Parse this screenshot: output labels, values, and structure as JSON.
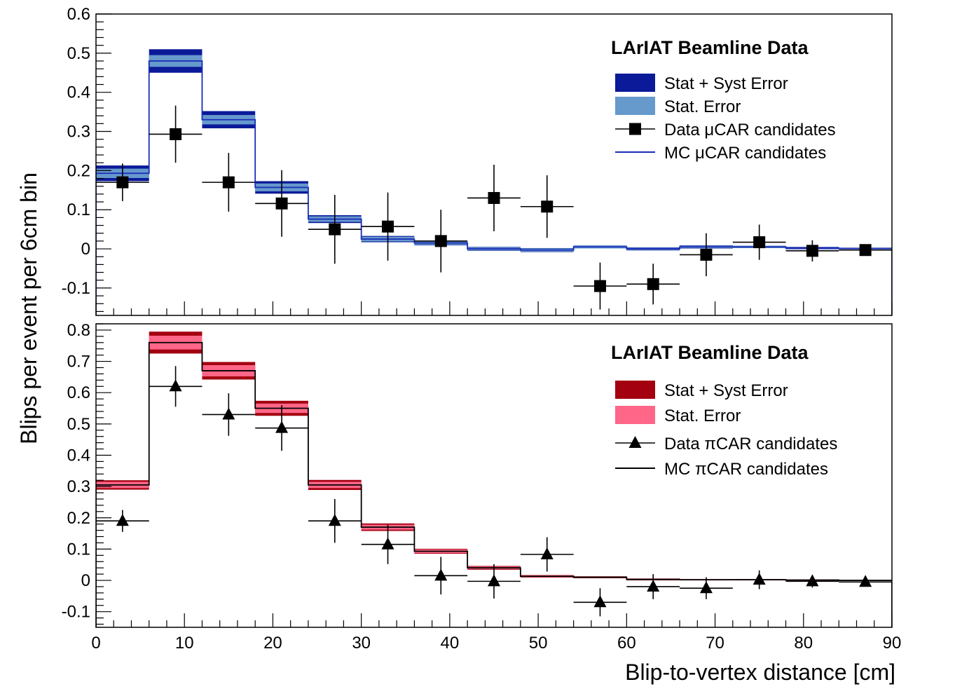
{
  "x_axis": {
    "label": "Blip-to-vertex distance [cm]",
    "lim": [
      0,
      90
    ],
    "ticks": [
      0,
      10,
      20,
      30,
      40,
      50,
      60,
      70,
      80,
      90
    ]
  },
  "y_axis_label": "Blips per event per 6cm bin",
  "chart_data": [
    {
      "type": "step-histogram-with-points",
      "panel": "top",
      "title": "LArIAT Beamline Data",
      "ylim": [
        -0.17,
        0.6
      ],
      "yticks": [
        -0.1,
        0,
        0.1,
        0.2,
        0.3,
        0.4,
        0.5,
        0.6
      ],
      "ytick_labels": [
        "-0.1",
        "0",
        "0.1",
        "0.2",
        "0.3",
        "0.4",
        "0.5",
        "0.6"
      ],
      "bin_edges": [
        0,
        6,
        12,
        18,
        24,
        30,
        36,
        42,
        48,
        54,
        60,
        66,
        72,
        78,
        84,
        90
      ],
      "mc": {
        "name": "MC μCAR candidates",
        "color": "#1a2bb8",
        "values": [
          0.193,
          0.48,
          0.33,
          0.157,
          0.076,
          0.025,
          0.015,
          0.0,
          -0.003,
          0.005,
          0.0,
          0.005,
          0.005,
          0.002,
          0.001
        ],
        "stat_err": [
          0.012,
          0.015,
          0.012,
          0.01,
          0.007,
          0.006,
          0.005,
          0.004,
          0.004,
          0.004,
          0.003,
          0.003,
          0.003,
          0.002,
          0.002
        ],
        "total_err": [
          0.02,
          0.03,
          0.022,
          0.016,
          0.01,
          0.008,
          0.006,
          0.005,
          0.005,
          0.004,
          0.004,
          0.004,
          0.003,
          0.003,
          0.002
        ],
        "stat_color": "#6699cc",
        "total_color": "#0b1a99"
      },
      "data": {
        "name": "Data μCAR candidates",
        "marker": "square",
        "x": [
          3,
          9,
          15,
          21,
          27,
          33,
          39,
          45,
          51,
          57,
          63,
          69,
          75,
          81,
          87
        ],
        "y": [
          0.17,
          0.293,
          0.17,
          0.116,
          0.05,
          0.057,
          0.02,
          0.13,
          0.108,
          -0.095,
          -0.09,
          -0.015,
          0.017,
          -0.005,
          -0.003
        ],
        "yerr": [
          0.048,
          0.073,
          0.075,
          0.085,
          0.088,
          0.087,
          0.08,
          0.085,
          0.08,
          0.06,
          0.052,
          0.055,
          0.045,
          0.027,
          0.008
        ]
      },
      "legend": [
        {
          "label": "Stat + Syst Error",
          "kind": "band-total"
        },
        {
          "label": "Stat. Error",
          "kind": "band-stat"
        },
        {
          "label": "Data μCAR candidates",
          "kind": "data"
        },
        {
          "label": "MC μCAR candidates",
          "kind": "mc"
        }
      ]
    },
    {
      "type": "step-histogram-with-points",
      "panel": "bottom",
      "title": "LArIAT Beamline Data",
      "ylim": [
        -0.15,
        0.82
      ],
      "yticks": [
        -0.1,
        0,
        0.1,
        0.2,
        0.3,
        0.4,
        0.5,
        0.6,
        0.7,
        0.8
      ],
      "ytick_labels": [
        "-0.1",
        "0",
        "0.1",
        "0.2",
        "0.3",
        "0.4",
        "0.5",
        "0.6",
        "0.7",
        "0.8"
      ],
      "bin_edges": [
        0,
        6,
        12,
        18,
        24,
        30,
        36,
        42,
        48,
        54,
        60,
        66,
        72,
        78,
        84,
        90
      ],
      "mc": {
        "name": "MC πCAR candidates",
        "color": "#000000",
        "values": [
          0.305,
          0.76,
          0.67,
          0.55,
          0.305,
          0.17,
          0.093,
          0.04,
          0.013,
          0.01,
          0.003,
          0.002,
          0.002,
          0.001,
          0.0
        ],
        "stat_err": [
          0.01,
          0.022,
          0.018,
          0.015,
          0.01,
          0.008,
          0.006,
          0.004,
          0.003,
          0.002,
          0.002,
          0.002,
          0.001,
          0.001,
          0.001
        ],
        "total_err": [
          0.015,
          0.035,
          0.028,
          0.024,
          0.016,
          0.012,
          0.008,
          0.006,
          0.004,
          0.003,
          0.003,
          0.002,
          0.002,
          0.002,
          0.001
        ],
        "stat_color": "#ff6688",
        "total_color": "#a30010"
      },
      "data": {
        "name": "Data πCAR candidates",
        "marker": "triangle",
        "x": [
          3,
          9,
          15,
          21,
          27,
          33,
          39,
          45,
          51,
          57,
          63,
          69,
          75,
          81,
          87
        ],
        "y": [
          0.19,
          0.62,
          0.53,
          0.487,
          0.19,
          0.115,
          0.015,
          -0.003,
          0.083,
          -0.07,
          -0.02,
          -0.025,
          0.002,
          -0.003,
          -0.005
        ],
        "yerr": [
          0.035,
          0.065,
          0.068,
          0.073,
          0.07,
          0.063,
          0.06,
          0.055,
          0.055,
          0.045,
          0.04,
          0.035,
          0.03,
          0.02,
          0.01
        ]
      },
      "legend": [
        {
          "label": "Stat + Syst Error",
          "kind": "band-total"
        },
        {
          "label": "Stat. Error",
          "kind": "band-stat"
        },
        {
          "label": "Data πCAR candidates",
          "kind": "data"
        },
        {
          "label": "MC πCAR candidates",
          "kind": "mc"
        }
      ]
    }
  ]
}
